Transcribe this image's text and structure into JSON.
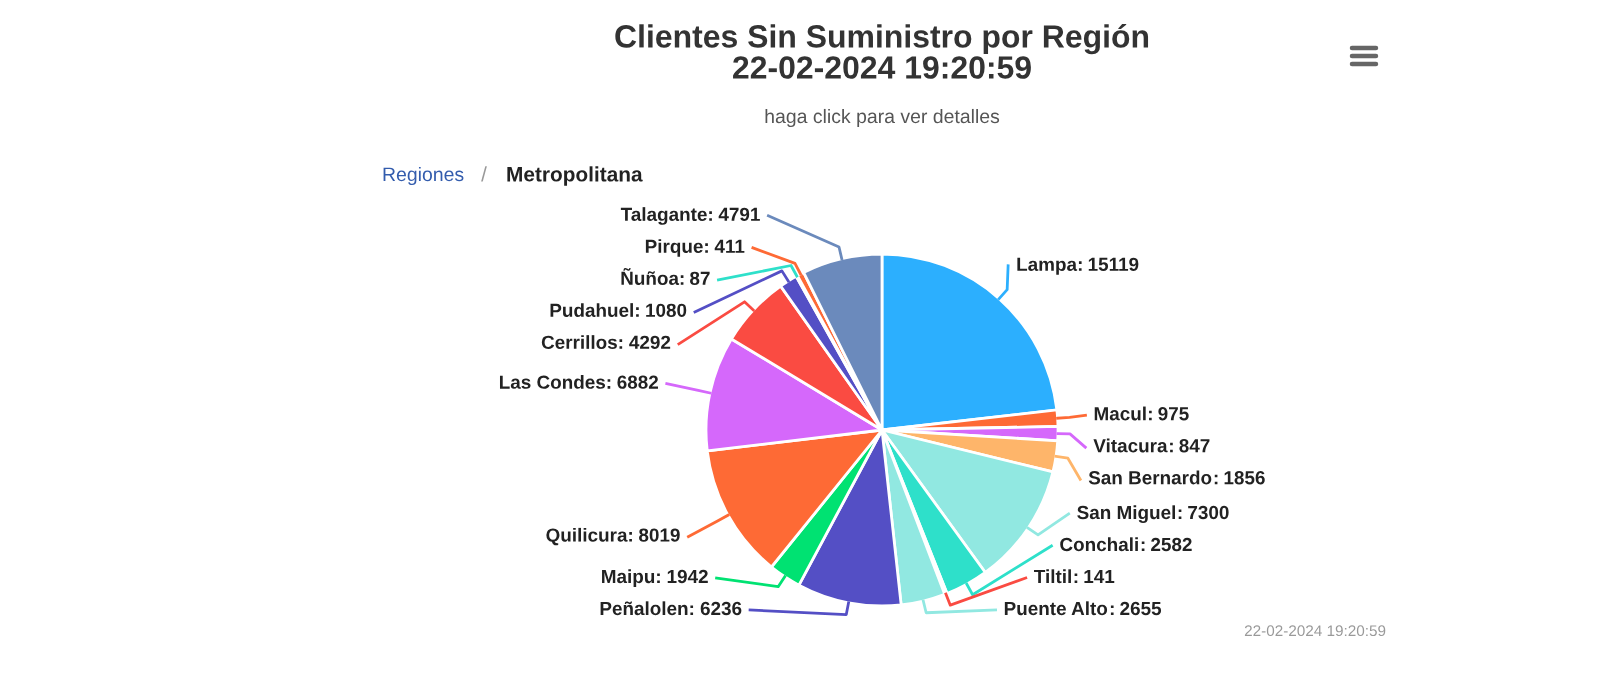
{
  "chart_data": {
    "type": "pie",
    "title": "Clientes Sin Suministro por Región\n22-02-2024 19:20:59",
    "subtitle": "haga click para ver detalles",
    "categories": [
      "Lampa",
      "Macul",
      "Vitacura",
      "San Bernardo",
      "San Miguel",
      "Conchali",
      "Tiltil",
      "Puente Alto",
      "Peñalolen",
      "Maipu",
      "Quilicura",
      "Las Condes",
      "Cerrillos",
      "Pudahuel",
      "Ñuñoa",
      "Pirque",
      "Talagante"
    ],
    "values": [
      15119,
      975,
      847,
      1856,
      7300,
      2582,
      141,
      2655,
      6236,
      1942,
      8019,
      6882,
      4292,
      1080,
      87,
      411,
      4791
    ],
    "colors": [
      "#2caffe",
      "#fe6a35",
      "#d568fb",
      "#feb56a",
      "#91e8e1",
      "#2ee0ca",
      "#fa4b42",
      "#91e8e1",
      "#544fc5",
      "#00e272",
      "#fe6a35",
      "#d568fb",
      "#fa4b42",
      "#544fc5",
      "#2ee0ca",
      "#fe6a35",
      "#6b8abc"
    ],
    "data_labels": true,
    "annotations": [
      "Regiones",
      "/",
      "Metropolitana",
      "22-02-2024 19:20:59"
    ]
  }
}
